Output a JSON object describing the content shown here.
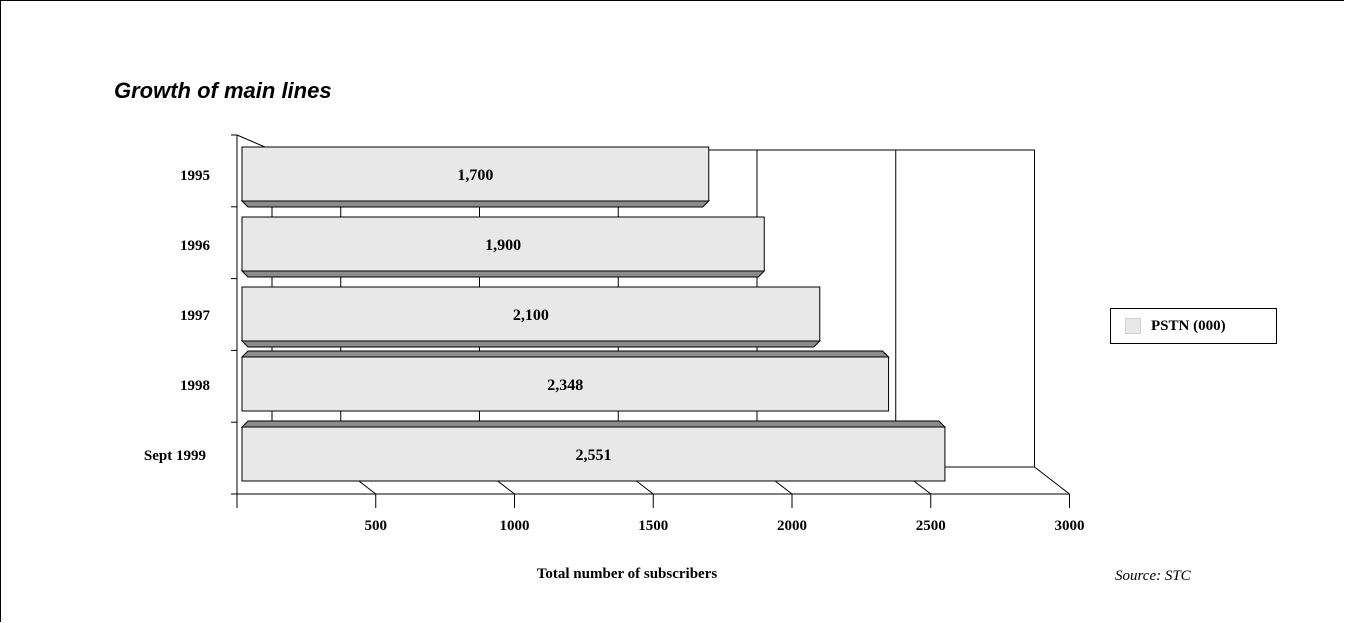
{
  "chart_data": {
    "type": "bar",
    "orientation": "horizontal",
    "title": "Growth of main lines",
    "categories": [
      "1995",
      "1996",
      "1997",
      "1998",
      "Sept 1999"
    ],
    "series": [
      {
        "name": "PSTN (000)",
        "values": [
          1700,
          1900,
          2100,
          2348,
          2551
        ],
        "labels": [
          "1,700",
          "1,900",
          "2,100",
          "2,348",
          "2,551"
        ]
      }
    ],
    "xlabel": "Total number of subscribers",
    "x_ticks": [
      500,
      1000,
      1500,
      2000,
      2500,
      3000
    ],
    "xlim": [
      0,
      3000
    ],
    "grid": true,
    "legend_position": "right"
  },
  "source": "Source: STC",
  "colors": {
    "bar_face": "#e8e8e8",
    "bar_shadow": "#8c8c8c",
    "line": "#000000"
  }
}
